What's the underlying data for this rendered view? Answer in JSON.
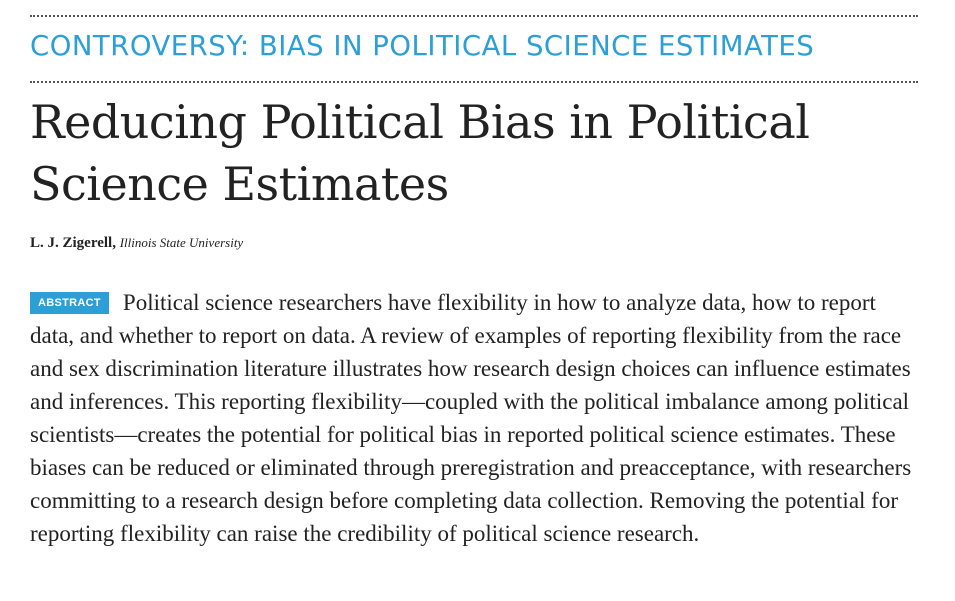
{
  "section": {
    "label": "CONTROVERSY: BIAS IN POLITICAL SCIENCE ESTIMATES"
  },
  "article": {
    "title_line1": "Reducing Political Bias in Political",
    "title_line2": "Science Estimates",
    "author": "L. J. Zigerell,",
    "affiliation": "Illinois State University",
    "abstract_label": "ABSTRACT",
    "abstract_text": "Political science researchers have flexibility in how to analyze data, how to report data, and whether to report on data. A review of examples of reporting flexibility from the race and sex discrimination literature illustrates how research design choices can influence estimates and inferences. This reporting flexibility—coupled with the political imbalance among political scientists—creates the potential for political bias in reported political science estimates. These biases can be reduced or eliminated through preregistration and preacceptance, with researchers committing to a research design before completing data collection. Removing the potential for reporting flexibility can raise the credibility of political science research."
  },
  "colors": {
    "accent": "#2b9fd6",
    "text": "#222222"
  }
}
